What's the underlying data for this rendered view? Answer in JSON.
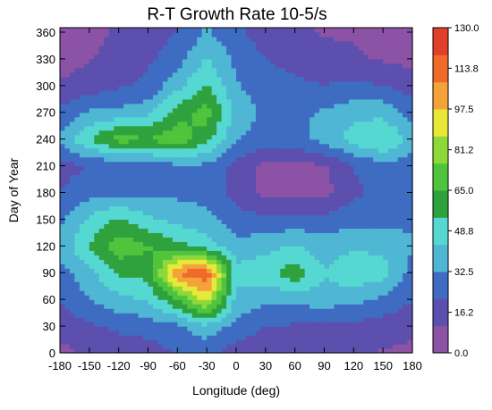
{
  "chart_data": {
    "type": "heatmap",
    "title": "R-T Growth Rate 10-5/s",
    "xlabel": "Longitude (deg)",
    "ylabel": "Day of Year",
    "xlim": [
      -180,
      180
    ],
    "ylim": [
      0,
      365
    ],
    "x_ticks": [
      -180,
      -150,
      -120,
      -90,
      -60,
      -30,
      0,
      30,
      60,
      90,
      120,
      150,
      180
    ],
    "y_ticks": [
      0,
      30,
      60,
      90,
      120,
      150,
      180,
      210,
      240,
      270,
      300,
      330,
      360
    ],
    "colorbar": {
      "levels": [
        0.0,
        16.2,
        32.5,
        48.8,
        65.0,
        81.2,
        97.5,
        113.8,
        130.0
      ],
      "labels": [
        "0.0",
        "16.2",
        "32.5",
        "48.8",
        "65.0",
        "81.2",
        "97.5",
        "113.8",
        "130.0"
      ],
      "colors": [
        "#8c52a6",
        "#5c4fae",
        "#3f6cc3",
        "#4fb7d4",
        "#56d8d2",
        "#2fa23e",
        "#4fc43c",
        "#8fd83a",
        "#e8e838",
        "#f4a33a",
        "#f06a2a",
        "#e0402a"
      ]
    },
    "x": [
      -180,
      -150,
      -120,
      -90,
      -60,
      -30,
      0,
      30,
      60,
      90,
      120,
      150,
      180
    ],
    "y": [
      0,
      30,
      60,
      90,
      120,
      150,
      180,
      210,
      240,
      270,
      300,
      330,
      360
    ],
    "z": [
      [
        8,
        12,
        14,
        16,
        22,
        24,
        16,
        12,
        12,
        12,
        12,
        10,
        8
      ],
      [
        14,
        20,
        24,
        26,
        30,
        40,
        28,
        22,
        20,
        18,
        18,
        16,
        14
      ],
      [
        22,
        32,
        40,
        44,
        64,
        92,
        40,
        34,
        36,
        38,
        36,
        30,
        22
      ],
      [
        28,
        40,
        56,
        58,
        110,
        118,
        48,
        50,
        62,
        44,
        52,
        48,
        28
      ],
      [
        36,
        54,
        72,
        66,
        58,
        50,
        36,
        40,
        44,
        38,
        42,
        40,
        34
      ],
      [
        30,
        46,
        56,
        46,
        40,
        36,
        26,
        24,
        26,
        26,
        28,
        30,
        30
      ],
      [
        22,
        28,
        30,
        28,
        30,
        28,
        18,
        8,
        6,
        6,
        20,
        24,
        24
      ],
      [
        18,
        22,
        24,
        26,
        30,
        30,
        18,
        8,
        6,
        10,
        22,
        28,
        26
      ],
      [
        34,
        54,
        70,
        66,
        72,
        58,
        34,
        26,
        30,
        36,
        48,
        56,
        40
      ],
      [
        24,
        34,
        36,
        40,
        60,
        70,
        40,
        30,
        30,
        34,
        40,
        40,
        28
      ],
      [
        12,
        16,
        20,
        24,
        40,
        56,
        34,
        26,
        24,
        22,
        24,
        22,
        16
      ],
      [
        6,
        10,
        14,
        20,
        28,
        44,
        30,
        22,
        18,
        14,
        12,
        10,
        8
      ],
      [
        4,
        8,
        12,
        16,
        22,
        34,
        24,
        16,
        12,
        10,
        10,
        8,
        6
      ]
    ]
  }
}
